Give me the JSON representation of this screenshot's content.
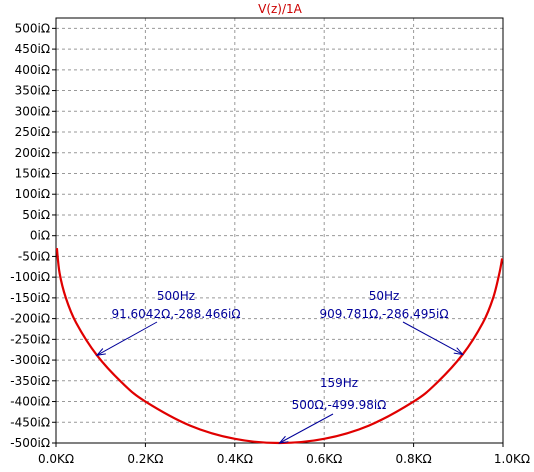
{
  "chart_data": {
    "type": "line",
    "title": "V(z)/1A",
    "xlabel": "",
    "ylabel": "",
    "xlim": [
      0,
      1000
    ],
    "ylim": [
      -500,
      525
    ],
    "grid": true,
    "x_ticks": [
      {
        "value": 0,
        "label": "0.0KΩ"
      },
      {
        "value": 200,
        "label": "0.2KΩ"
      },
      {
        "value": 400,
        "label": "0.4KΩ"
      },
      {
        "value": 600,
        "label": "0.6KΩ"
      },
      {
        "value": 800,
        "label": "0.8KΩ"
      },
      {
        "value": 1000,
        "label": "1.0KΩ"
      }
    ],
    "y_ticks": [
      {
        "value": 500,
        "label": "500iΩ"
      },
      {
        "value": 450,
        "label": "450iΩ"
      },
      {
        "value": 400,
        "label": "400iΩ"
      },
      {
        "value": 350,
        "label": "350iΩ"
      },
      {
        "value": 300,
        "label": "300iΩ"
      },
      {
        "value": 250,
        "label": "250iΩ"
      },
      {
        "value": 200,
        "label": "200iΩ"
      },
      {
        "value": 150,
        "label": "150iΩ"
      },
      {
        "value": 100,
        "label": "100iΩ"
      },
      {
        "value": 50,
        "label": "50iΩ"
      },
      {
        "value": 0,
        "label": "0iΩ"
      },
      {
        "value": -50,
        "label": "-50iΩ"
      },
      {
        "value": -100,
        "label": "-100iΩ"
      },
      {
        "value": -150,
        "label": "-150iΩ"
      },
      {
        "value": -200,
        "label": "-200iΩ"
      },
      {
        "value": -250,
        "label": "-250iΩ"
      },
      {
        "value": -300,
        "label": "-300iΩ"
      },
      {
        "value": -350,
        "label": "-350iΩ"
      },
      {
        "value": -400,
        "label": "-400iΩ"
      },
      {
        "value": -450,
        "label": "-450iΩ"
      },
      {
        "value": -500,
        "label": "-500iΩ"
      }
    ],
    "series": [
      {
        "color": "#e00000",
        "points": [
          {
            "x": 2,
            "y": -30
          },
          {
            "x": 8,
            "y": -90
          },
          {
            "x": 22,
            "y": -150
          },
          {
            "x": 45,
            "y": -210
          },
          {
            "x": 91.6,
            "y": -288.5
          },
          {
            "x": 150,
            "y": -357
          },
          {
            "x": 200,
            "y": -400
          },
          {
            "x": 300,
            "y": -458
          },
          {
            "x": 400,
            "y": -490
          },
          {
            "x": 500,
            "y": -500
          },
          {
            "x": 600,
            "y": -490
          },
          {
            "x": 700,
            "y": -458
          },
          {
            "x": 800,
            "y": -400
          },
          {
            "x": 850,
            "y": -357
          },
          {
            "x": 909.8,
            "y": -286.5
          },
          {
            "x": 955,
            "y": -210
          },
          {
            "x": 978,
            "y": -150
          },
          {
            "x": 992,
            "y": -90
          },
          {
            "x": 998,
            "y": -55
          }
        ]
      }
    ],
    "annotations": [
      {
        "title": "500Hz",
        "value": "91.6042Ω,-288.466iΩ",
        "x": 91.6,
        "y": -288.5
      },
      {
        "title": "50Hz",
        "value": "909.781Ω,-286.495iΩ",
        "x": 909.8,
        "y": -286.5
      },
      {
        "title": "159Hz",
        "value": "500Ω,-499.98iΩ",
        "x": 500,
        "y": -500
      }
    ],
    "colors": {
      "axis": "#000000",
      "grid": "#999999",
      "curve": "#e00000",
      "title": "#cc0000",
      "annotation": "#000099"
    }
  }
}
